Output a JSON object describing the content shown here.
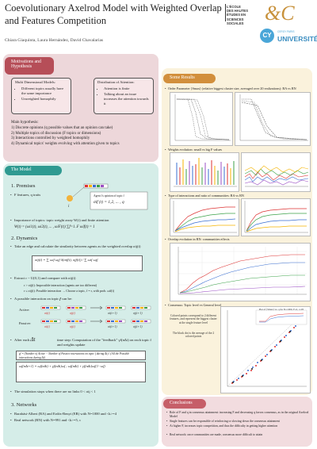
{
  "header": {
    "title": "Coevolutionary Axelrod Model with Weighted Overlap and Features Competition",
    "authors": "Chiara Giaquinta, Laura Hernández, David Chavalarias",
    "ecole_logo_lines": [
      "L'ÉCOLE",
      "DES HAUTES",
      "ÉTUDES EN",
      "SCIENCES",
      "SOCIALES"
    ],
    "cy_badge": "CY",
    "cy_subtitle": "CERGY PARIS",
    "cy_name": "UNIVERSITÉ"
  },
  "motivations": {
    "tab_label": "Motivations and Hypothesis",
    "box1": {
      "title": "Multi Dimensional Models:",
      "items": [
        "Different topics usually have the same importance",
        "Unweighted homophily"
      ]
    },
    "box2": {
      "title": "Distribution of Attention:",
      "items": [
        "Attention is finite",
        "Talking about an issue increases the attention towards it"
      ]
    },
    "main_title": "Main hypothesis:",
    "hypotheses": [
      "1) Discrete opinions (q possible values that an opinion can take)",
      "2) Multiple topics of discussion (F topics or dimensions)",
      "3) Interactions controlled by weighted homophily",
      "4) Dynamical topics' weights evolving with attention given to topics"
    ]
  },
  "model": {
    "tab_label": "The Model",
    "s1": "1. Premises",
    "f_features": "F features, q traits",
    "agent_label": "Agent i's opinion of topic f",
    "agent_formula": "σif (t) = 1,2, ... , q",
    "importance": "Importance of topics: topic weight array W(t) and finite attention",
    "importance_formula": "W(t) = (ωi1(t), ωi2(t), ... , ωiF(t))    ∑f=1..F ωif(t) = 1",
    "s2": "2. Dynamics",
    "take_edge": "Take an edge and calculate the similarity between agents as the weighted overlap σij(t)",
    "overlap_formula": "σij(t) = ∑ ωif ωjf δ(σif(t), σjf(t)) / ∑ ωif ωjf",
    "extract": "Extract r ~ U(0,1) and compare with σij(t)",
    "impossible": "r > σij(t): Impossible interaction (agents are too different)",
    "possible": "r ≤ σij(t): Possible interaction → Choose a topic, f = r, with prob. ωif(t)",
    "possible_head": "A possible interaction on topic",
    "possible_topic": "f",
    "can_be": "can be:",
    "active": "Active:",
    "passive": "Passive:",
    "after_each": "After each",
    "delta_t": "Δt",
    "time_step": "time step: Computation of the \"feedback\" γf(nΔt) on each topic f and weights update",
    "feedback_formula": "γf = (Number of Active − Number of Passive interactions on topic f during Δt) / (All the Possible interactions during Δt)",
    "update_formula": "ωf(nΔt+1) = ωf(nΔt) + γf(nΔt)ωf ;  ωf(nΔt) + γf(nΔt)ωf(1−ωf)",
    "simulation_stops": "The simulation stops when there are no links 0 < σij < 1",
    "s3": "3. Networks",
    "networks": [
      "Barabási-Albert (BA) and Erdös-Renyi (ER) with N=1000 and <k>=4",
      "Real network (RN) with N=991 and <k>=5, c"
    ]
  },
  "results": {
    "tab_label": "Some Results",
    "items": [
      "Order Parameter ⟨Smax⟩ (relative biggest cluster size, averaged over 20 realizations): BA vs RN",
      "Weights evolution: small vs big F values",
      "Type of interactions and ratio of communities: BA vs RN",
      "Overlap evolution in RN: communities effects",
      "Consensus: Topic level vs General level"
    ],
    "consensus_note": "Colored points correspond to 2 different features, and represent the biggest cluster at the single feature level",
    "consensus_note2": "The black dot is the average of the 2 colored points",
    "consensus_inset": "Plot of ⟨Smax⟩ vs. q for N=1000, F=2, c=05"
  },
  "conclusions": {
    "tab_label": "Conclusions",
    "items": [
      "Role of F and q in consensus attainment: increasing F and decreasing q favors consensus, as in the original Axelrod Model",
      "Single features can be responsible of reinforcing or slowing down the consensus attainment",
      "At higher F, increases topic competition, and thus the difficulty in getting higher attention",
      "Real network: once communities are made, consensus more difficult to attain"
    ]
  },
  "colors": {
    "motivation_panel": "#edd7da",
    "model_panel": "#d5ede8",
    "results_panel": "#faf2dc",
    "conclusions_panel": "#f2dcdf",
    "motivation_tab": "#b64e58",
    "model_tab": "#2f9a91",
    "results_tab": "#d28f3c",
    "conclusions_tab": "#c65e68"
  }
}
